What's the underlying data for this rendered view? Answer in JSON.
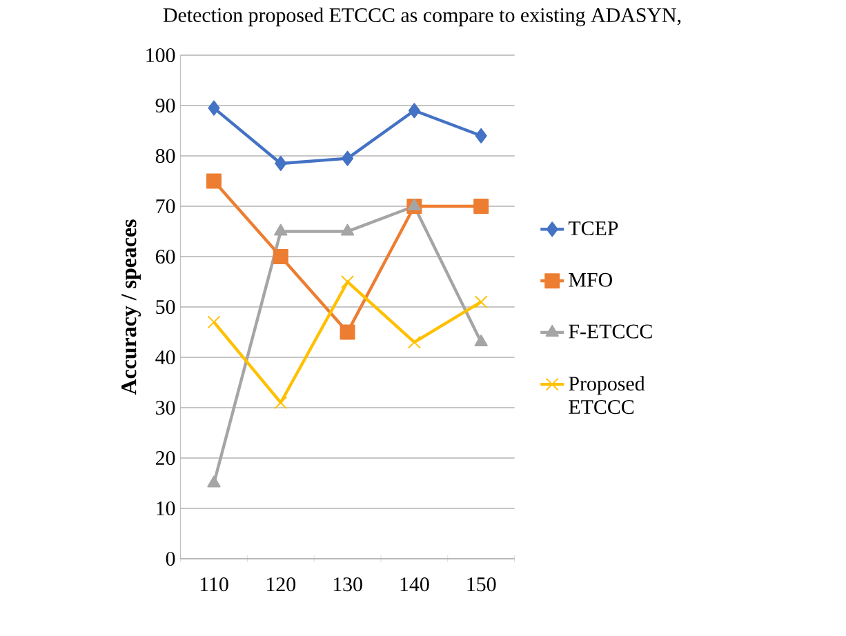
{
  "chart_data": {
    "type": "line",
    "title": "Detection proposed ETCCC as compare to existing ADASYN,",
    "ylabel": "Accuracy / speaces",
    "categories": [
      "110",
      "120",
      "130",
      "140",
      "150"
    ],
    "series": [
      {
        "name": "TCEP",
        "color": "#4472c4",
        "marker": "diamond",
        "values": [
          89.5,
          78.5,
          79.5,
          89,
          84
        ]
      },
      {
        "name": "MFO",
        "color": "#ed7d31",
        "marker": "square",
        "values": [
          75,
          60,
          45,
          70,
          70
        ]
      },
      {
        "name": "F-ETCCC",
        "color": "#a5a5a5",
        "marker": "triangle",
        "values": [
          15,
          65,
          65,
          70,
          43
        ]
      },
      {
        "name": "Proposed ETCCC",
        "color": "#ffc000",
        "marker": "cross",
        "values": [
          47,
          31,
          55,
          43,
          51
        ]
      }
    ],
    "ylim": [
      0,
      100
    ],
    "yticks": [
      0,
      10,
      20,
      30,
      40,
      50,
      60,
      70,
      80,
      90,
      100
    ],
    "grid": "y",
    "legend": "right",
    "line_style": "solid"
  }
}
